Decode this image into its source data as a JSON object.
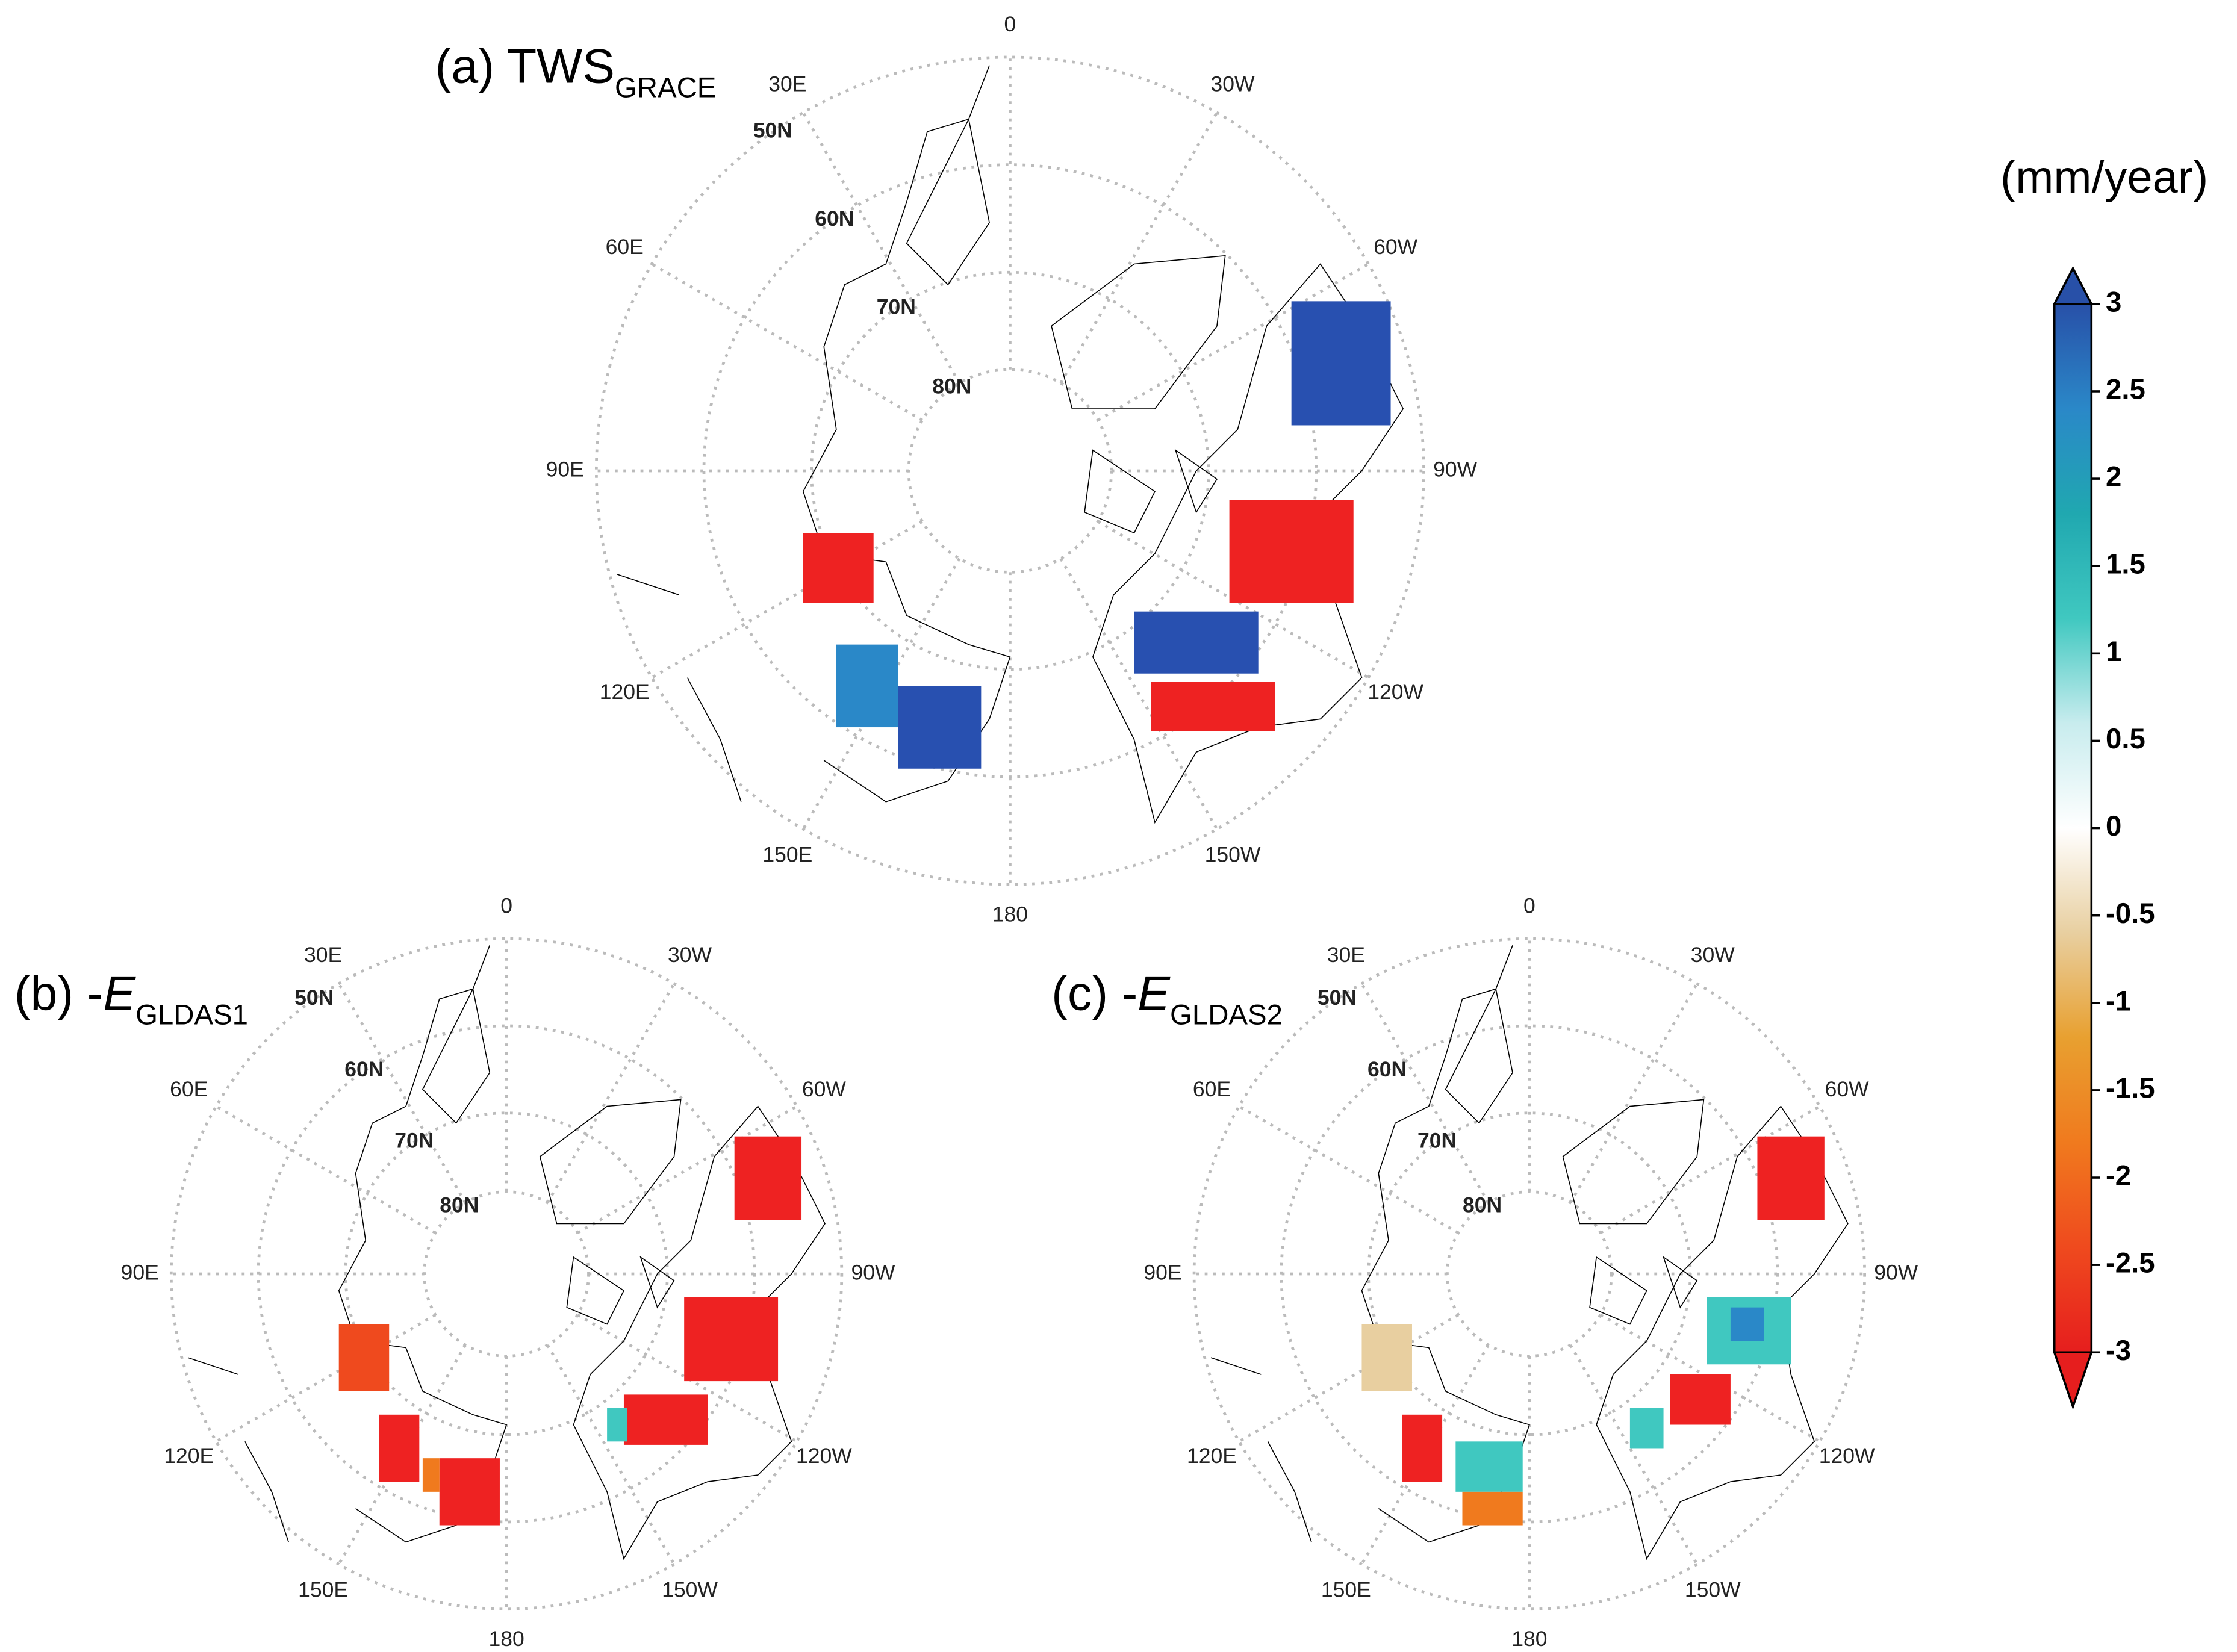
{
  "panels": [
    {
      "title": "(a) TWS",
      "title_sub": "GRACE"
    },
    {
      "title": "(b) -",
      "title_var": "E",
      "title_sub": "GLDAS1"
    },
    {
      "title": "(c) -",
      "title_var": "E",
      "title_sub": "GLDAS2"
    }
  ],
  "longitude_labels": [
    "0",
    "30W",
    "60W",
    "90W",
    "120W",
    "150W",
    "180",
    "150E",
    "120E",
    "90E",
    "60E",
    "30E"
  ],
  "latitude_labels": [
    "50N",
    "60N",
    "70N",
    "80N"
  ],
  "colorbar": {
    "label": "(mm/year)",
    "lim": [
      -3,
      3
    ],
    "ticks": [
      3,
      2.5,
      2,
      1.5,
      1,
      0.5,
      0,
      -0.5,
      -1,
      -1.5,
      -2,
      -2.5,
      -3
    ],
    "colors": [
      "#e61e1e",
      "#ef4a1e",
      "#f07a1e",
      "#e8a030",
      "#e8cfa0",
      "#ffffff",
      "#c8ecee",
      "#40c8c0",
      "#20a8b0",
      "#2a88c8",
      "#2850a8"
    ]
  }
}
